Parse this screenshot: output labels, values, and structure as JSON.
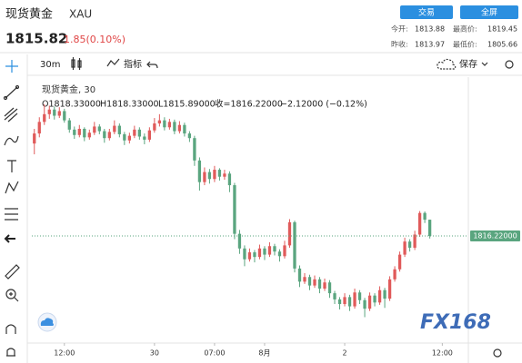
{
  "header": {
    "name": "现货黄金",
    "symbol": "XAU",
    "buttons": [
      "交易",
      "全屏"
    ],
    "price": "1815.82",
    "change": "1.85(0.10%)",
    "stats": [
      {
        "label": "今开:",
        "value": "1813.88"
      },
      {
        "label": "最高价:",
        "value": "1819.45"
      },
      {
        "label": "昨收:",
        "value": "1813.97"
      },
      {
        "label": "最低价:",
        "value": "1805.66"
      }
    ]
  },
  "toolbar": {
    "interval": "30m",
    "indicators": "指标",
    "save": "保存"
  },
  "watermark": "FX168",
  "chart_data": {
    "type": "candlestick",
    "title": "现货黄金, 30",
    "ohlc_legend": [
      "O1818.33000",
      "H1818.33000",
      "L1815.89000",
      "收=1816.22000",
      "−2.12000 (−0.12%)"
    ],
    "up_color": "#e05a5a",
    "down_color": "#5aa57f",
    "xlim": [
      -0.5,
      86.7
    ],
    "ylim": [
      1802.7,
      1836.8
    ],
    "xticks": [
      {
        "value": 6,
        "label": "12:00"
      },
      {
        "value": 24,
        "label": "30"
      },
      {
        "value": 36,
        "label": "07:00"
      },
      {
        "value": 46,
        "label": "8月"
      },
      {
        "value": 62,
        "label": "2"
      },
      {
        "value": 81.5,
        "label": "12:00"
      }
    ],
    "last_price": {
      "value": 1816.22,
      "label": "1816.22000"
    },
    "open": [
      1828.2,
      1829.5,
      1831.0,
      1832.0,
      1832.6,
      1831.8,
      1832.4,
      1831.2,
      1830.0,
      1829.3,
      1830.1,
      1829.0,
      1829.6,
      1830.4,
      1829.8,
      1828.9,
      1829.7,
      1830.5,
      1829.4,
      1828.6,
      1829.2,
      1830.0,
      1829.1,
      1828.7,
      1829.9,
      1830.8,
      1831.2,
      1830.3,
      1831.0,
      1829.8,
      1830.6,
      1829.5,
      1828.9,
      1826.0,
      1823.2,
      1824.5,
      1823.6,
      1824.8,
      1823.9,
      1824.3,
      1822.8,
      1816.5,
      1814.6,
      1813.2,
      1814.1,
      1813.5,
      1814.6,
      1813.8,
      1814.9,
      1814.2,
      1813.6,
      1815.0,
      1818.0,
      1812.0,
      1810.3,
      1810.9,
      1809.8,
      1810.6,
      1809.4,
      1810.2,
      1808.8,
      1808.0,
      1807.4,
      1808.3,
      1807.1,
      1808.9,
      1807.9,
      1806.8,
      1808.5,
      1807.6,
      1809.2,
      1808.1,
      1810.6,
      1811.9,
      1813.8,
      1815.5,
      1814.7,
      1816.4,
      1819.2,
      1818.33
    ],
    "high": [
      1830.1,
      1831.6,
      1833.3,
      1833.1,
      1833.0,
      1832.9,
      1832.7,
      1831.5,
      1830.4,
      1830.6,
      1830.3,
      1830.0,
      1831.0,
      1830.7,
      1830.1,
      1830.1,
      1831.2,
      1830.8,
      1829.7,
      1829.6,
      1830.5,
      1830.3,
      1829.5,
      1830.3,
      1831.5,
      1832.0,
      1831.6,
      1831.4,
      1831.3,
      1831.1,
      1830.9,
      1829.8,
      1829.2,
      1826.4,
      1825.1,
      1824.9,
      1825.3,
      1825.0,
      1824.8,
      1824.6,
      1823.1,
      1817.0,
      1815.0,
      1814.6,
      1814.4,
      1815.1,
      1814.9,
      1815.4,
      1815.2,
      1814.5,
      1815.6,
      1818.4,
      1818.2,
      1812.4,
      1811.4,
      1811.2,
      1811.1,
      1810.9,
      1810.7,
      1810.5,
      1809.1,
      1808.3,
      1808.8,
      1808.6,
      1809.4,
      1809.2,
      1808.2,
      1808.9,
      1808.8,
      1809.7,
      1809.5,
      1811.0,
      1812.3,
      1814.2,
      1816.0,
      1815.8,
      1816.9,
      1819.45,
      1819.4,
      1818.33
    ],
    "low": [
      1826.8,
      1829.0,
      1830.6,
      1831.4,
      1831.3,
      1831.5,
      1830.9,
      1829.6,
      1828.8,
      1829.0,
      1828.5,
      1828.7,
      1829.3,
      1829.4,
      1828.3,
      1828.6,
      1829.4,
      1829.0,
      1828.0,
      1828.2,
      1828.9,
      1828.7,
      1828.1,
      1828.4,
      1829.6,
      1830.4,
      1829.9,
      1830.0,
      1829.4,
      1829.5,
      1829.1,
      1828.4,
      1825.3,
      1822.1,
      1822.8,
      1823.0,
      1823.2,
      1823.4,
      1823.5,
      1821.9,
      1815.8,
      1813.9,
      1812.3,
      1812.9,
      1812.8,
      1813.2,
      1813.1,
      1813.5,
      1813.7,
      1812.9,
      1813.3,
      1814.7,
      1811.5,
      1809.6,
      1810.0,
      1809.2,
      1809.5,
      1808.8,
      1809.1,
      1808.2,
      1807.4,
      1806.7,
      1807.1,
      1806.5,
      1806.8,
      1807.4,
      1805.7,
      1806.5,
      1807.1,
      1807.3,
      1806.9,
      1807.8,
      1810.3,
      1811.6,
      1813.5,
      1814.2,
      1814.4,
      1816.1,
      1817.9,
      1815.89
    ],
    "close": [
      1829.5,
      1831.0,
      1832.0,
      1832.6,
      1831.8,
      1832.4,
      1831.2,
      1830.0,
      1829.3,
      1830.1,
      1829.0,
      1829.6,
      1830.4,
      1829.8,
      1828.9,
      1829.7,
      1830.5,
      1829.4,
      1828.6,
      1829.2,
      1830.0,
      1829.1,
      1828.7,
      1829.9,
      1830.8,
      1831.2,
      1830.3,
      1831.0,
      1829.8,
      1830.6,
      1829.5,
      1828.9,
      1826.0,
      1823.2,
      1824.5,
      1823.6,
      1824.8,
      1823.9,
      1824.3,
      1822.8,
      1816.5,
      1814.6,
      1813.2,
      1814.1,
      1813.5,
      1814.6,
      1813.8,
      1814.9,
      1814.2,
      1813.6,
      1815.0,
      1818.0,
      1812.0,
      1810.3,
      1810.9,
      1809.8,
      1810.6,
      1809.4,
      1810.2,
      1808.8,
      1808.0,
      1807.4,
      1808.3,
      1807.1,
      1808.9,
      1807.9,
      1806.8,
      1808.5,
      1807.6,
      1809.2,
      1808.1,
      1810.6,
      1811.9,
      1813.8,
      1815.5,
      1814.7,
      1816.4,
      1819.2,
      1818.33,
      1816.22
    ]
  }
}
